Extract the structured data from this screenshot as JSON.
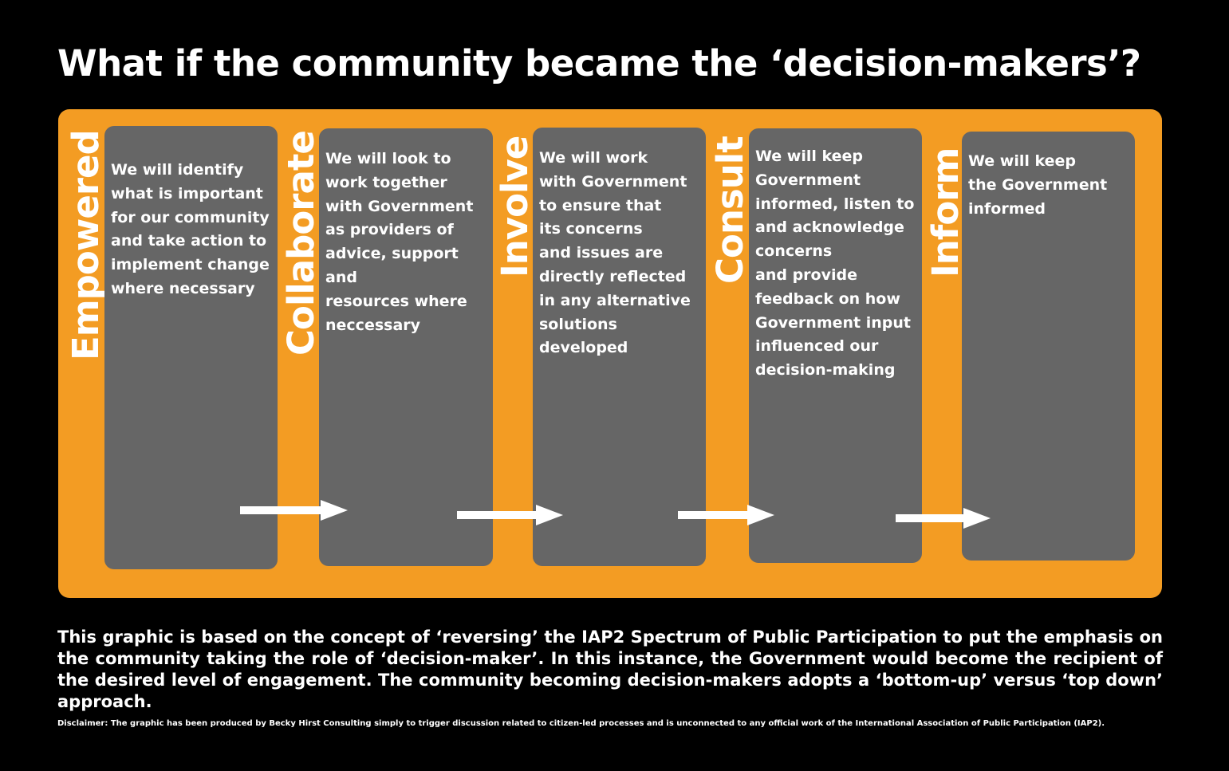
{
  "title": "What if the community became the ‘decision-makers’?",
  "colors": {
    "background": "#000000",
    "panel": "#f39c23",
    "box": "#666666",
    "text": "#ffffff"
  },
  "stages": [
    {
      "label": "Empowered",
      "text": "We will identify\nwhat is important\nfor our community\nand take action to\nimplement change\nwhere necessary"
    },
    {
      "label": "Collaborate",
      "text": "We will look to\nwork together\nwith Government\nas providers of\nadvice, support and\nresources where\nneccessary"
    },
    {
      "label": "Involve",
      "text": "We will work\nwith Government\nto ensure that\nits concerns\nand issues are\ndirectly reflected\nin any alternative\nsolutions\ndeveloped"
    },
    {
      "label": "Consult",
      "text": "We will keep\nGovernment\ninformed, listen to\nand acknowledge\nconcerns\nand provide\nfeedback on how\nGovernment input\ninfluenced our\ndecision-making"
    },
    {
      "label": "Inform",
      "text": "We will keep\nthe Government\ninformed"
    }
  ],
  "arrows": [
    "arrow-right-icon",
    "arrow-right-icon",
    "arrow-right-icon",
    "arrow-right-icon"
  ],
  "note": "This graphic is based on the concept of ‘reversing’ the IAP2 Spectrum of Public Participation to put the emphasis on the community taking the role of ‘decision-maker’. In this instance, the Government would become the recipient of the desired level of engagement. The community becoming decision-makers adopts a ‘bottom-up’ versus ‘top down’ approach.",
  "disclaimer": "Disclaimer: The graphic has been produced by Becky Hirst Consulting simply to trigger discussion related to citizen-led processes and is unconnected to any official work of the International Association of Public Participation (IAP2)."
}
